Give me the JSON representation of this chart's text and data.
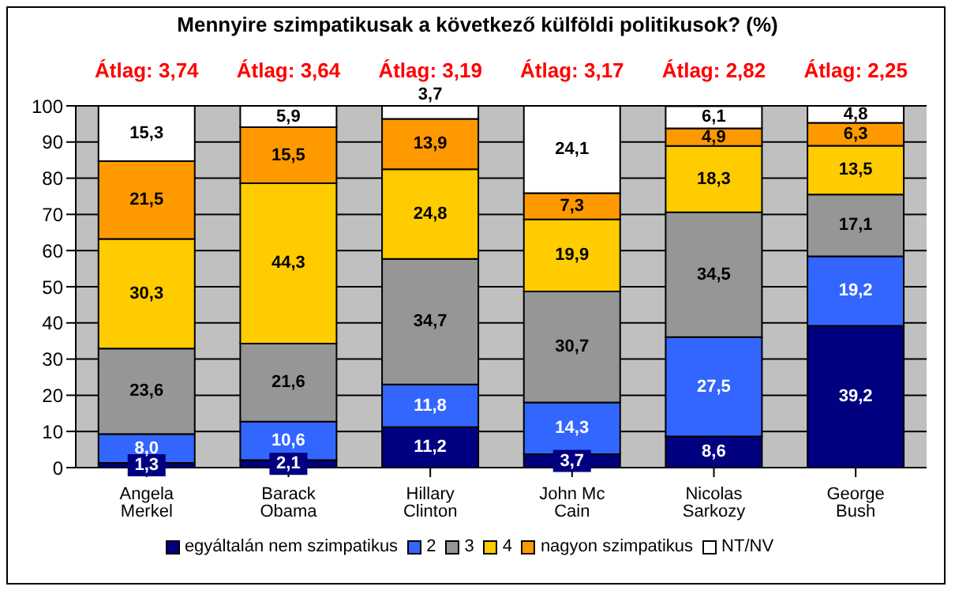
{
  "chart_data": {
    "type": "bar",
    "stacked": true,
    "title": "Mennyire szimpatikusak a következő külföldi politikusok?  (%)",
    "categories": [
      "Angela Merkel",
      "Barack Obama",
      "Hillary  Clinton",
      "John Mc Cain",
      "Nicolas Sarkozy",
      "George Bush"
    ],
    "series": [
      {
        "name": "egyáltalán nem szimpatikus",
        "color": "#000080",
        "values": [
          1.3,
          2.1,
          11.2,
          3.7,
          8.6,
          39.2
        ],
        "value_labels": [
          "1,3",
          "2,1",
          "11,2",
          "3,7",
          "8,6",
          "39,2"
        ]
      },
      {
        "name": "2",
        "color": "#3366ff",
        "values": [
          8.0,
          10.6,
          11.8,
          14.3,
          27.5,
          19.2
        ],
        "value_labels": [
          "8,0",
          "10,6",
          "11,8",
          "14,3",
          "27,5",
          "19,2"
        ]
      },
      {
        "name": "3",
        "color": "#969696",
        "values": [
          23.6,
          21.6,
          34.7,
          30.7,
          34.5,
          17.1
        ],
        "value_labels": [
          "23,6",
          "21,6",
          "34,7",
          "30,7",
          "34,5",
          "17,1"
        ]
      },
      {
        "name": "4",
        "color": "#ffcc00",
        "values": [
          30.3,
          44.3,
          24.8,
          19.9,
          18.3,
          13.5
        ],
        "value_labels": [
          "30,3",
          "44,3",
          "24,8",
          "19,9",
          "18,3",
          "13,5"
        ]
      },
      {
        "name": "nagyon szimpatikus",
        "color": "#ff9900",
        "values": [
          21.5,
          15.5,
          13.9,
          7.3,
          4.9,
          6.3
        ],
        "value_labels": [
          "21,5",
          "15,5",
          "13,9",
          "7,3",
          "4,9",
          "6,3"
        ]
      },
      {
        "name": "NT/NV",
        "color": "#ffffff",
        "values": [
          15.3,
          5.9,
          3.7,
          24.1,
          6.1,
          4.8
        ],
        "value_labels": [
          "15,3",
          "5,9",
          "3,7",
          "24,1",
          "6,1",
          "4,8"
        ]
      }
    ],
    "ylim": [
      0,
      100
    ],
    "yticks": [
      0,
      10,
      20,
      30,
      40,
      50,
      60,
      70,
      80,
      90,
      100
    ],
    "grid": "y",
    "legend": "bottom",
    "annotations": [
      "Átlag: 3,74",
      "Átlag: 3,64",
      "Átlag: 3,19",
      "Átlag: 3,17",
      "Átlag: 2,82",
      "Átlag: 2,25"
    ]
  }
}
